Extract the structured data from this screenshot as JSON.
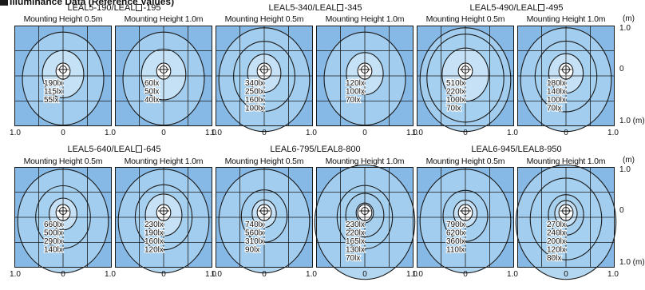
{
  "header": {
    "title": "Illuminance Data (Reference Values)"
  },
  "axis": {
    "ticks": [
      "1.0",
      "0",
      "1.0"
    ],
    "right_top": "1.0",
    "right_zero": "0",
    "right_bottom": "1.0 (m)",
    "unit": "(m)"
  },
  "colors": {
    "background": "#86b9e6",
    "fill_outer": "#a7d0ef",
    "fill_mid": "#cbe4f6",
    "fill_inner": "#ffffff",
    "line": "#1a1a1a"
  },
  "chart_data": [
    {
      "type": "heatmap",
      "title_parts": [
        "LEAL5-190/LEAL",
        "-195"
      ],
      "panels": [
        {
          "label": "Mounting Height 0.5m",
          "contours": [
            {
              "value": 190,
              "unit": "lx"
            },
            {
              "value": 115,
              "unit": "lx"
            },
            {
              "value": 55,
              "unit": "lx"
            }
          ]
        },
        {
          "label": "Mounting Height 1.0m",
          "contours": [
            {
              "value": 60,
              "unit": "lx"
            },
            {
              "value": 50,
              "unit": "lx"
            },
            {
              "value": 40,
              "unit": "lx"
            }
          ]
        }
      ]
    },
    {
      "type": "heatmap",
      "title_parts": [
        "LEAL5-340/LEAL",
        "-345"
      ],
      "panels": [
        {
          "label": "Mounting Height 0.5m",
          "contours": [
            {
              "value": 340,
              "unit": "lx"
            },
            {
              "value": 250,
              "unit": "lx"
            },
            {
              "value": 160,
              "unit": "lx"
            },
            {
              "value": 100,
              "unit": "lx"
            }
          ]
        },
        {
          "label": "Mounting Height 1.0m",
          "contours": [
            {
              "value": 120,
              "unit": "lx"
            },
            {
              "value": 100,
              "unit": "lx"
            },
            {
              "value": 70,
              "unit": "lx"
            }
          ]
        }
      ]
    },
    {
      "type": "heatmap",
      "title_parts": [
        "LEAL5-490/LEAL",
        "-495"
      ],
      "panels": [
        {
          "label": "Mounting Height 0.5m",
          "contours": [
            {
              "value": 510,
              "unit": "lx"
            },
            {
              "value": 220,
              "unit": "lx"
            },
            {
              "value": 100,
              "unit": "lx"
            },
            {
              "value": 70,
              "unit": "lx"
            }
          ]
        },
        {
          "label": "Mounting Height 1.0m",
          "contours": [
            {
              "value": 180,
              "unit": "lx"
            },
            {
              "value": 140,
              "unit": "lx"
            },
            {
              "value": 100,
              "unit": "lx"
            },
            {
              "value": 70,
              "unit": "lx"
            }
          ]
        }
      ]
    },
    {
      "type": "heatmap",
      "title_parts": [
        "LEAL5-640/LEAL",
        "-645"
      ],
      "panels": [
        {
          "label": "Mounting Height 0.5m",
          "contours": [
            {
              "value": 660,
              "unit": "lx"
            },
            {
              "value": 500,
              "unit": "lx"
            },
            {
              "value": 290,
              "unit": "lx"
            },
            {
              "value": 140,
              "unit": "lx"
            }
          ]
        },
        {
          "label": "Mounting Height 1.0m",
          "contours": [
            {
              "value": 230,
              "unit": "lx"
            },
            {
              "value": 190,
              "unit": "lx"
            },
            {
              "value": 160,
              "unit": "lx"
            },
            {
              "value": 120,
              "unit": "lx"
            }
          ]
        }
      ]
    },
    {
      "type": "heatmap",
      "title_parts": [
        "LEAL6-795/LEAL8-800"
      ],
      "panels": [
        {
          "label": "Mounting Height 0.5m",
          "contours": [
            {
              "value": 740,
              "unit": "lx"
            },
            {
              "value": 560,
              "unit": "lx"
            },
            {
              "value": 310,
              "unit": "lx"
            },
            {
              "value": 90,
              "unit": "lx"
            }
          ]
        },
        {
          "label": "Mounting Height 1.0m",
          "contours": [
            {
              "value": 230,
              "unit": "lx"
            },
            {
              "value": 220,
              "unit": "lx"
            },
            {
              "value": 165,
              "unit": "lx"
            },
            {
              "value": 130,
              "unit": "lx"
            },
            {
              "value": 70,
              "unit": "lx"
            }
          ]
        }
      ]
    },
    {
      "type": "heatmap",
      "title_parts": [
        "LEAL6-945/LEAL8-950"
      ],
      "panels": [
        {
          "label": "Mounting Height 0.5m",
          "contours": [
            {
              "value": 790,
              "unit": "lx"
            },
            {
              "value": 620,
              "unit": "lx"
            },
            {
              "value": 360,
              "unit": "lx"
            },
            {
              "value": 110,
              "unit": "lx"
            }
          ]
        },
        {
          "label": "Mounting Height 1.0m",
          "contours": [
            {
              "value": 270,
              "unit": "lx"
            },
            {
              "value": 240,
              "unit": "lx"
            },
            {
              "value": 200,
              "unit": "lx"
            },
            {
              "value": 120,
              "unit": "lx"
            },
            {
              "value": 80,
              "unit": "lx"
            }
          ]
        }
      ]
    }
  ]
}
